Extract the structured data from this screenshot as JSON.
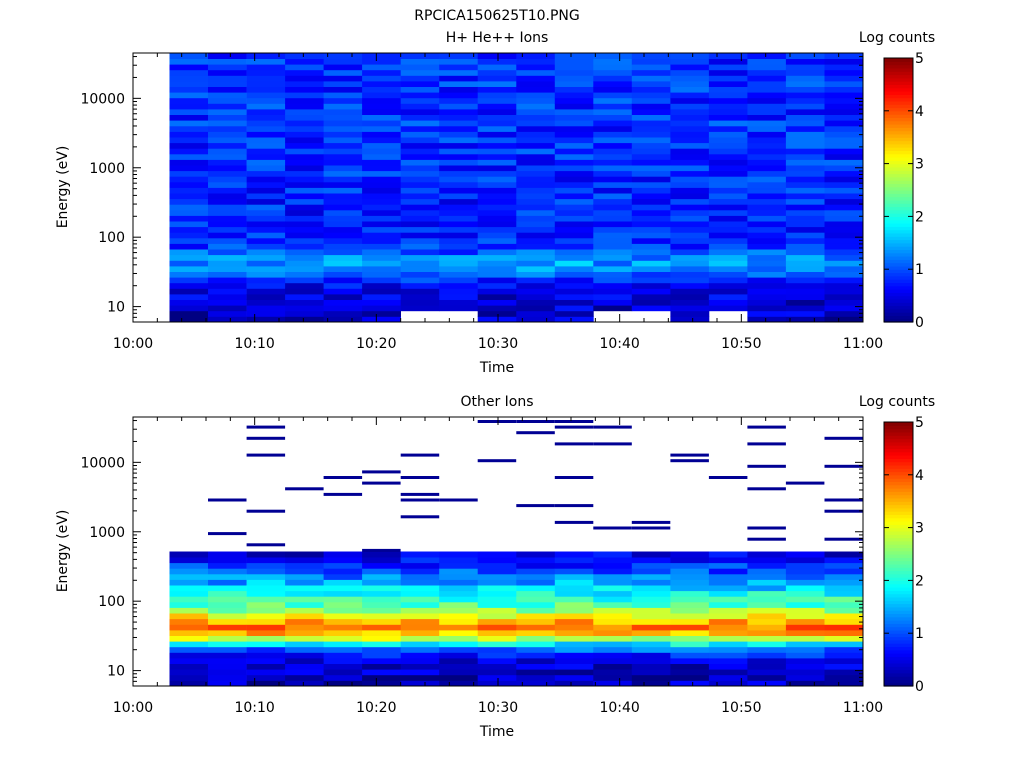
{
  "figure_title": "RPCICA150625T10.PNG",
  "chart_data": [
    {
      "type": "heatmap",
      "title": "H+ He++ Ions",
      "xlabel": "Time",
      "ylabel": "Energy (eV)",
      "x_ticks": [
        "10:00",
        "10:10",
        "10:20",
        "10:30",
        "10:40",
        "10:50",
        "11:00"
      ],
      "xlim": [
        "10:00",
        "11:00"
      ],
      "y_ticks": [
        10,
        100,
        1000,
        10000
      ],
      "ylim": [
        6,
        45000
      ],
      "y_scale": "log",
      "time_bins": 18,
      "bins_start": "10:03",
      "bins_end": "11:00",
      "colorbar": {
        "label": "Log counts",
        "ticks": [
          "0",
          "1",
          "2",
          "3",
          "4",
          "5"
        ],
        "range": [
          0,
          5
        ]
      },
      "profile": [
        {
          "energy": 8,
          "value": 0.35
        },
        {
          "energy": 12,
          "value": 0.45
        },
        {
          "energy": 20,
          "value": 0.55
        },
        {
          "energy": 30,
          "value": 1.2
        },
        {
          "energy": 45,
          "value": 1.4
        },
        {
          "energy": 70,
          "value": 0.9
        },
        {
          "energy": 150,
          "value": 0.75
        },
        {
          "energy": 500,
          "value": 0.8
        },
        {
          "energy": 3000,
          "value": 0.85
        },
        {
          "energy": 40000,
          "value": 0.85
        }
      ],
      "empty_cells": [
        {
          "column": 6,
          "energy": 7
        },
        {
          "column": 7,
          "energy": 7
        },
        {
          "column": 14,
          "energy": 7
        },
        {
          "column": 11,
          "energy": 7
        },
        {
          "column": 12,
          "energy": 7
        }
      ]
    },
    {
      "type": "heatmap",
      "title": "Other Ions",
      "xlabel": "Time",
      "ylabel": "Energy (eV)",
      "x_ticks": [
        "10:00",
        "10:10",
        "10:20",
        "10:30",
        "10:40",
        "10:50",
        "11:00"
      ],
      "xlim": [
        "10:00",
        "11:00"
      ],
      "y_ticks": [
        10,
        100,
        1000,
        10000
      ],
      "ylim": [
        6,
        45000
      ],
      "y_scale": "log",
      "time_bins": 18,
      "bins_start": "10:03",
      "bins_end": "11:00",
      "colorbar": {
        "label": "Log counts",
        "ticks": [
          "0",
          "1",
          "2",
          "3",
          "4",
          "5"
        ],
        "range": [
          0,
          5
        ]
      },
      "profile": [
        {
          "energy": 8,
          "value": 0.3
        },
        {
          "energy": 14,
          "value": 0.4
        },
        {
          "energy": 22,
          "value": 1.3
        },
        {
          "energy": 30,
          "value": 3.0
        },
        {
          "energy": 40,
          "value": 3.9
        },
        {
          "energy": 55,
          "value": 3.4
        },
        {
          "energy": 80,
          "value": 2.4
        },
        {
          "energy": 130,
          "value": 1.9
        },
        {
          "energy": 250,
          "value": 1.1
        },
        {
          "energy": 500,
          "value": 0.4
        }
      ],
      "sparse_above_energy": 500,
      "sparse_value": 0.1
    }
  ]
}
